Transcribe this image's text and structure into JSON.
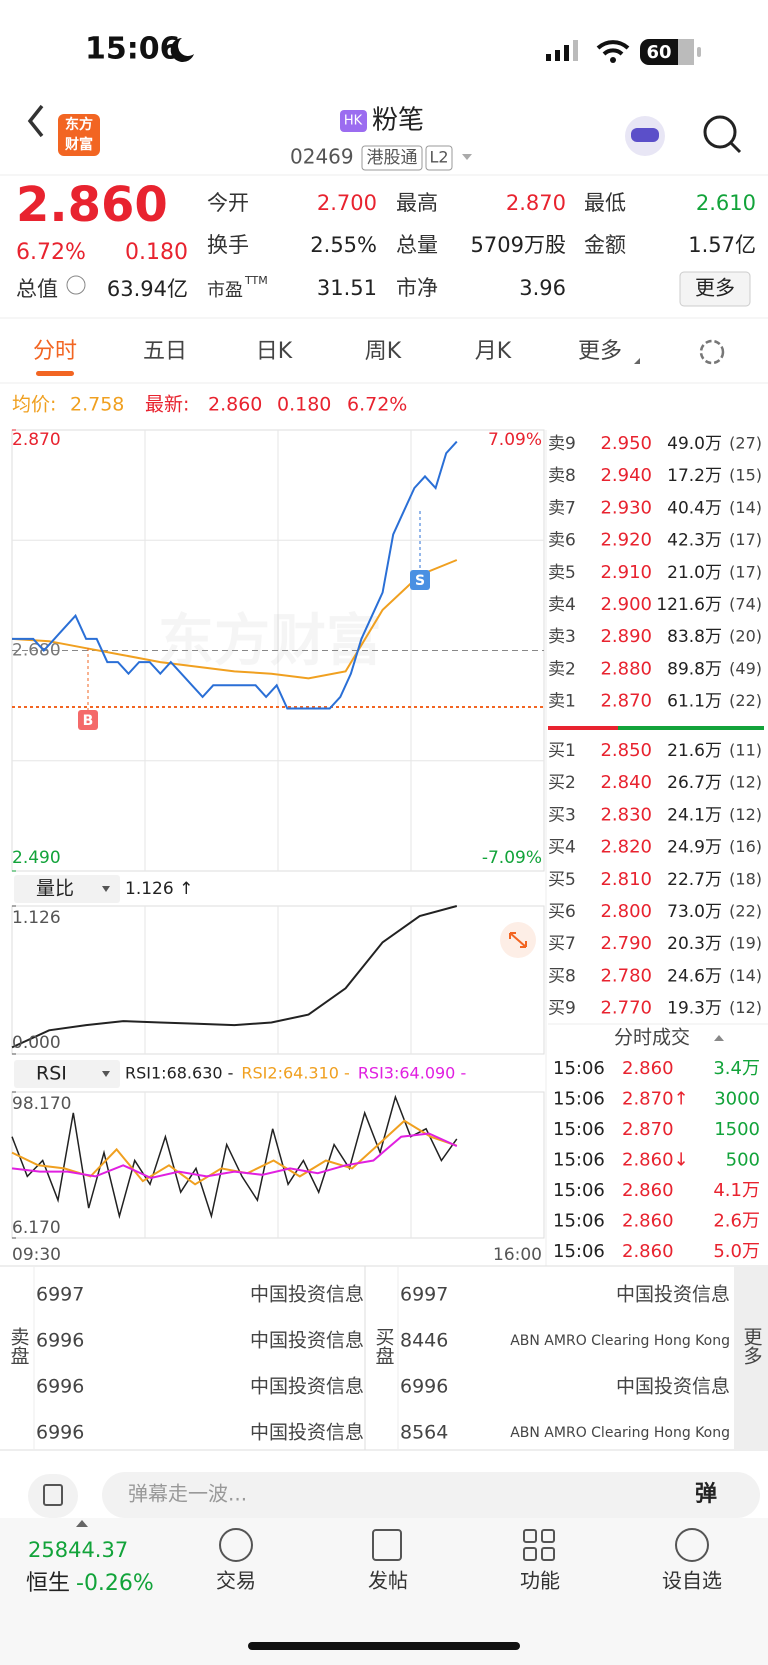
{
  "status": {
    "time": "15:06",
    "battery": "60"
  },
  "header": {
    "logo": [
      "东方",
      "财富"
    ],
    "market": "HK",
    "name": "粉笔",
    "code": "02469",
    "tags": [
      "港股通",
      "L2"
    ]
  },
  "quote": {
    "price": "2.860",
    "change_pct": "6.72%",
    "change": "0.180",
    "cap_label": "总值",
    "cap": "63.94亿",
    "pe_label": "市盈",
    "pe_sup": "TTM",
    "pe": "31.51",
    "pb_label": "市净",
    "pb": "3.96",
    "more": "更多",
    "stats": [
      [
        {
          "label": "今开",
          "value": "2.700",
          "color": "#e8232f"
        },
        {
          "label": "最高",
          "value": "2.870",
          "color": "#e8232f"
        },
        {
          "label": "最低",
          "value": "2.610",
          "color": "#12a33a"
        }
      ],
      [
        {
          "label": "换手",
          "value": "2.55%",
          "color": "#222"
        },
        {
          "label": "总量",
          "value": "5709万股",
          "color": "#222"
        },
        {
          "label": "金额",
          "value": "1.57亿",
          "color": "#222"
        }
      ]
    ]
  },
  "tabs": [
    "分时",
    "五日",
    "日K",
    "周K",
    "月K",
    "更多"
  ],
  "intraday": {
    "avg_label": "均价:",
    "avg": "2.758",
    "last_label": "最新:",
    "last": "2.860",
    "change": "0.180",
    "pct": "6.72%",
    "watermark": "东方财富",
    "price_top": {
      "value": 2.87,
      "label": "2.870"
    },
    "price_bottom": {
      "value": 2.49,
      "label": "2.490"
    },
    "pct_top": "7.09%",
    "pct_bottom": "-7.09%",
    "ref": {
      "value": 2.68,
      "label": "2.680"
    },
    "buy_mark": "B",
    "sell_mark": "S",
    "price_line": [
      2.69,
      2.69,
      2.69,
      2.68,
      2.69,
      2.7,
      2.71,
      2.69,
      2.69,
      2.67,
      2.67,
      2.66,
      2.67,
      2.67,
      2.66,
      2.67,
      2.66,
      2.65,
      2.64,
      2.65,
      2.65,
      2.65,
      2.65,
      2.65,
      2.64,
      2.65,
      2.63,
      2.63,
      2.63,
      2.63,
      2.63,
      2.64,
      2.66,
      2.69,
      2.71,
      2.73,
      2.78,
      2.8,
      2.82,
      2.83,
      2.82,
      2.85,
      2.86
    ],
    "avg_line": [
      2.69,
      2.688,
      2.682,
      2.676,
      2.67,
      2.666,
      2.662,
      2.66,
      2.656,
      2.662,
      2.715,
      2.745,
      2.758
    ]
  },
  "volume_ratio": {
    "label": "量比",
    "value": "1.126 ↑",
    "top": {
      "value": 1.126,
      "label": "1.126"
    },
    "bottom": {
      "value": 0,
      "label": "0.000"
    },
    "line": [
      0.05,
      0.18,
      0.22,
      0.25,
      0.24,
      0.23,
      0.22,
      0.24,
      0.3,
      0.5,
      0.85,
      1.05,
      1.126
    ]
  },
  "rsi": {
    "label": "RSI",
    "legend": [
      {
        "text": "RSI1:68.630 -",
        "color": "#222"
      },
      {
        "text": "RSI2:64.310 -",
        "color": "#f0a020"
      },
      {
        "text": "RSI3:64.090 -",
        "color": "#e020e0"
      }
    ],
    "top": {
      "value": 98.17,
      "label": "98.170"
    },
    "bottom": {
      "value": 6.17,
      "label": "6.170"
    },
    "start": "09:30",
    "end": "16:00",
    "lines": [
      {
        "color": "#222",
        "values": [
          70,
          45,
          55,
          30,
          85,
          25,
          60,
          20,
          55,
          40,
          70,
          35,
          50,
          20,
          65,
          45,
          30,
          75,
          40,
          55,
          35,
          65,
          50,
          85,
          60,
          95,
          70,
          75,
          55,
          68.63
        ]
      },
      {
        "color": "#f0a020",
        "values": [
          60,
          52,
          50,
          45,
          62,
          42,
          52,
          40,
          50,
          47,
          55,
          45,
          55,
          50,
          65,
          80,
          70,
          64.31
        ]
      },
      {
        "color": "#e020e0",
        "values": [
          50,
          48,
          48,
          45,
          52,
          44,
          48,
          45,
          48,
          46,
          50,
          47,
          52,
          55,
          70,
          72,
          64.09
        ]
      }
    ]
  },
  "order_book": {
    "sells": [
      [
        "卖9",
        "2.950",
        "49.0万",
        "(27)"
      ],
      [
        "卖8",
        "2.940",
        "17.2万",
        "(15)"
      ],
      [
        "卖7",
        "2.930",
        "40.4万",
        "(14)"
      ],
      [
        "卖6",
        "2.920",
        "42.3万",
        "(17)"
      ],
      [
        "卖5",
        "2.910",
        "21.0万",
        "(17)"
      ],
      [
        "卖4",
        "2.900",
        "121.6万",
        "(74)"
      ],
      [
        "卖3",
        "2.890",
        "83.8万",
        "(20)"
      ],
      [
        "卖2",
        "2.880",
        "89.8万",
        "(49)"
      ],
      [
        "卖1",
        "2.870",
        "61.1万",
        "(22)"
      ]
    ],
    "buys": [
      [
        "买1",
        "2.850",
        "21.6万",
        "(11)"
      ],
      [
        "买2",
        "2.840",
        "26.7万",
        "(12)"
      ],
      [
        "买3",
        "2.830",
        "24.1万",
        "(12)"
      ],
      [
        "买4",
        "2.820",
        "24.9万",
        "(16)"
      ],
      [
        "买5",
        "2.810",
        "22.7万",
        "(18)"
      ],
      [
        "买6",
        "2.800",
        "73.0万",
        "(22)"
      ],
      [
        "买7",
        "2.790",
        "20.3万",
        "(19)"
      ],
      [
        "买8",
        "2.780",
        "24.6万",
        "(14)"
      ],
      [
        "买9",
        "2.770",
        "19.3万",
        "(12)"
      ]
    ]
  },
  "trades": {
    "title": "分时成交",
    "rows": [
      {
        "time": "15:06",
        "price": "2.860",
        "vol": "3.4万",
        "color": "#12a33a"
      },
      {
        "time": "15:06",
        "price": "2.870↑",
        "vol": "3000",
        "color": "#12a33a"
      },
      {
        "time": "15:06",
        "price": "2.870",
        "vol": "1500",
        "color": "#12a33a"
      },
      {
        "time": "15:06",
        "price": "2.860↓",
        "vol": "500",
        "color": "#12a33a"
      },
      {
        "time": "15:06",
        "price": "2.860",
        "vol": "4.1万",
        "color": "#e8232f"
      },
      {
        "time": "15:06",
        "price": "2.860",
        "vol": "2.6万",
        "color": "#e8232f"
      },
      {
        "time": "15:06",
        "price": "2.860",
        "vol": "5.0万",
        "color": "#e8232f"
      }
    ]
  },
  "brokers": {
    "sell_label": "卖盘",
    "buy_label": "买盘",
    "more": "更多",
    "sell": [
      [
        "6997",
        "中国投资信息"
      ],
      [
        "6996",
        "中国投资信息"
      ],
      [
        "6996",
        "中国投资信息"
      ],
      [
        "6996",
        "中国投资信息"
      ]
    ],
    "buy": [
      [
        "6997",
        "中国投资信息"
      ],
      [
        "8446",
        "ABN AMRO Clearing Hong Kong"
      ],
      [
        "6996",
        "中国投资信息"
      ],
      [
        "8564",
        "ABN AMRO Clearing Hong Kong"
      ]
    ]
  },
  "comment": {
    "placeholder": "弹幕走一波...",
    "button": "弹"
  },
  "footer": {
    "index": "25844.37",
    "index_name": "恒生",
    "index_pct": "-0.26%",
    "nav": [
      "交易",
      "发帖",
      "功能",
      "设自选"
    ]
  }
}
